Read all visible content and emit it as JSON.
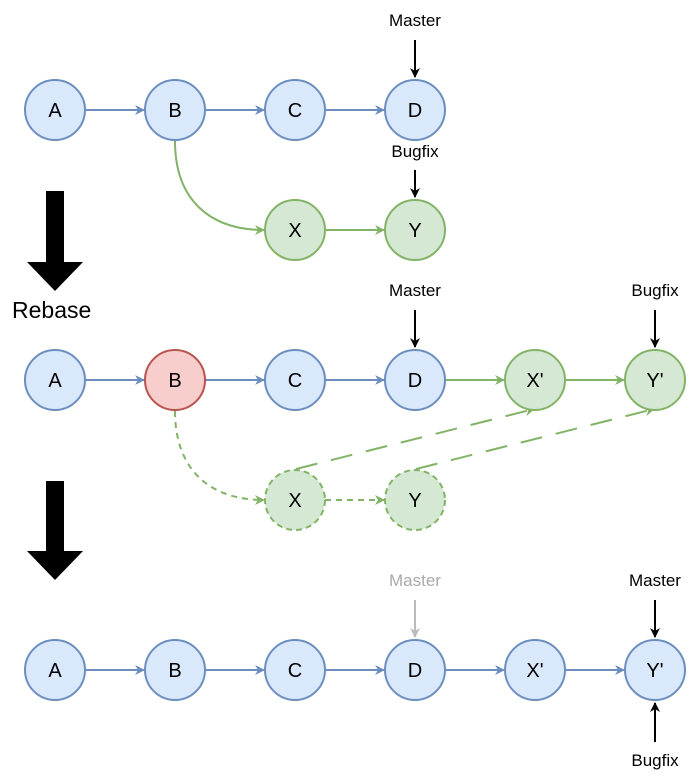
{
  "colors": {
    "blue_fill": "#dae8fc",
    "blue_stroke": "#6c8ebf",
    "green_fill": "#d5e8d4",
    "green_stroke": "#82b366",
    "red_fill": "#f8cecc",
    "red_stroke": "#b85450",
    "arrow_black": "#000000",
    "faded_gray": "#aaaaaa"
  },
  "rebase_label": "Rebase",
  "stage1": {
    "nodes": {
      "A": "A",
      "B": "B",
      "C": "C",
      "D": "D",
      "X": "X",
      "Y": "Y"
    },
    "master_label": "Master",
    "bugfix_label": "Bugfix"
  },
  "stage2": {
    "nodes": {
      "A": "A",
      "B": "B",
      "C": "C",
      "D": "D",
      "Xp": "X'",
      "Yp": "Y'",
      "X": "X",
      "Y": "Y"
    },
    "master_label": "Master",
    "bugfix_label": "Bugfix"
  },
  "stage3": {
    "nodes": {
      "A": "A",
      "B": "B",
      "C": "C",
      "D": "D",
      "Xp": "X'",
      "Yp": "Y'"
    },
    "old_master_label": "Master",
    "master_label": "Master",
    "bugfix_label": "Bugfix"
  }
}
